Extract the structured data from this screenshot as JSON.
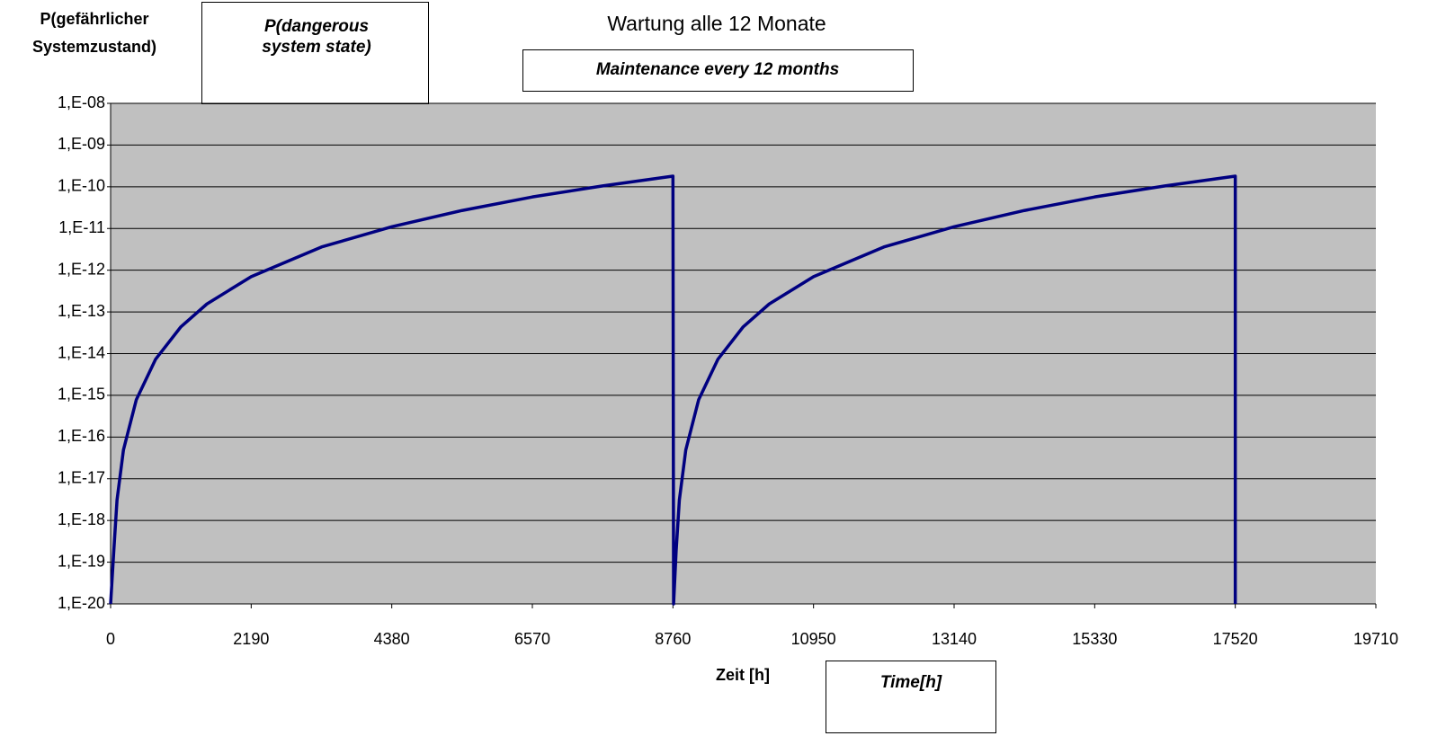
{
  "chart_data": {
    "type": "line",
    "title": "Wartung alle 12 Monate",
    "ylabel": [
      "P(gefährlicher",
      "Systemzustand)"
    ],
    "xlabel": "Zeit [h]",
    "annotations": [
      [
        "P(dangerous",
        "system state)"
      ],
      [
        "Maintenance every 12 months"
      ],
      [
        "Time[h]"
      ]
    ],
    "x": [
      0,
      50,
      100,
      200,
      400,
      700,
      1095,
      1500,
      2190,
      3285,
      4380,
      5475,
      6570,
      7665,
      8760,
      8770,
      8810,
      8860,
      8960,
      9160,
      9460,
      9855,
      10260,
      10950,
      12045,
      13140,
      14235,
      15330,
      16425,
      17520,
      17520
    ],
    "values": [
      1e-20,
      1.9e-19,
      3.1e-18,
      4.9e-17,
      7.8e-16,
      7.3e-15,
      4.4e-14,
      1.55e-13,
      7e-13,
      3.6e-12,
      1.1e-11,
      2.7e-11,
      5.7e-11,
      1.05e-10,
      1.8e-10,
      1e-20,
      1.9e-19,
      3.1e-18,
      4.9e-17,
      7.8e-16,
      7.3e-15,
      4.4e-14,
      1.55e-13,
      7e-13,
      3.6e-12,
      1.1e-11,
      2.7e-11,
      5.7e-11,
      1.05e-10,
      1.8e-10,
      1e-20
    ],
    "color": "#000080",
    "log_y": true,
    "grid": true,
    "xlim": [
      0,
      19710
    ],
    "xticks": [
      0,
      2190,
      4380,
      6570,
      8760,
      10950,
      13140,
      15330,
      17520,
      19710
    ],
    "ylim": [
      1e-20,
      1e-08
    ],
    "yticks": [
      {
        "value": 1e-20,
        "label": "1,E-20"
      },
      {
        "value": 1e-19,
        "label": "1,E-19"
      },
      {
        "value": 1e-18,
        "label": "1,E-18"
      },
      {
        "value": 1e-17,
        "label": "1,E-17"
      },
      {
        "value": 1e-16,
        "label": "1,E-16"
      },
      {
        "value": 1e-15,
        "label": "1,E-15"
      },
      {
        "value": 1e-14,
        "label": "1,E-14"
      },
      {
        "value": 1e-13,
        "label": "1,E-13"
      },
      {
        "value": 1e-12,
        "label": "1,E-12"
      },
      {
        "value": 1e-11,
        "label": "1,E-11"
      },
      {
        "value": 1e-10,
        "label": "1,E-10"
      },
      {
        "value": 1e-09,
        "label": "1,E-09"
      },
      {
        "value": 1e-08,
        "label": "1,E-08"
      }
    ]
  }
}
